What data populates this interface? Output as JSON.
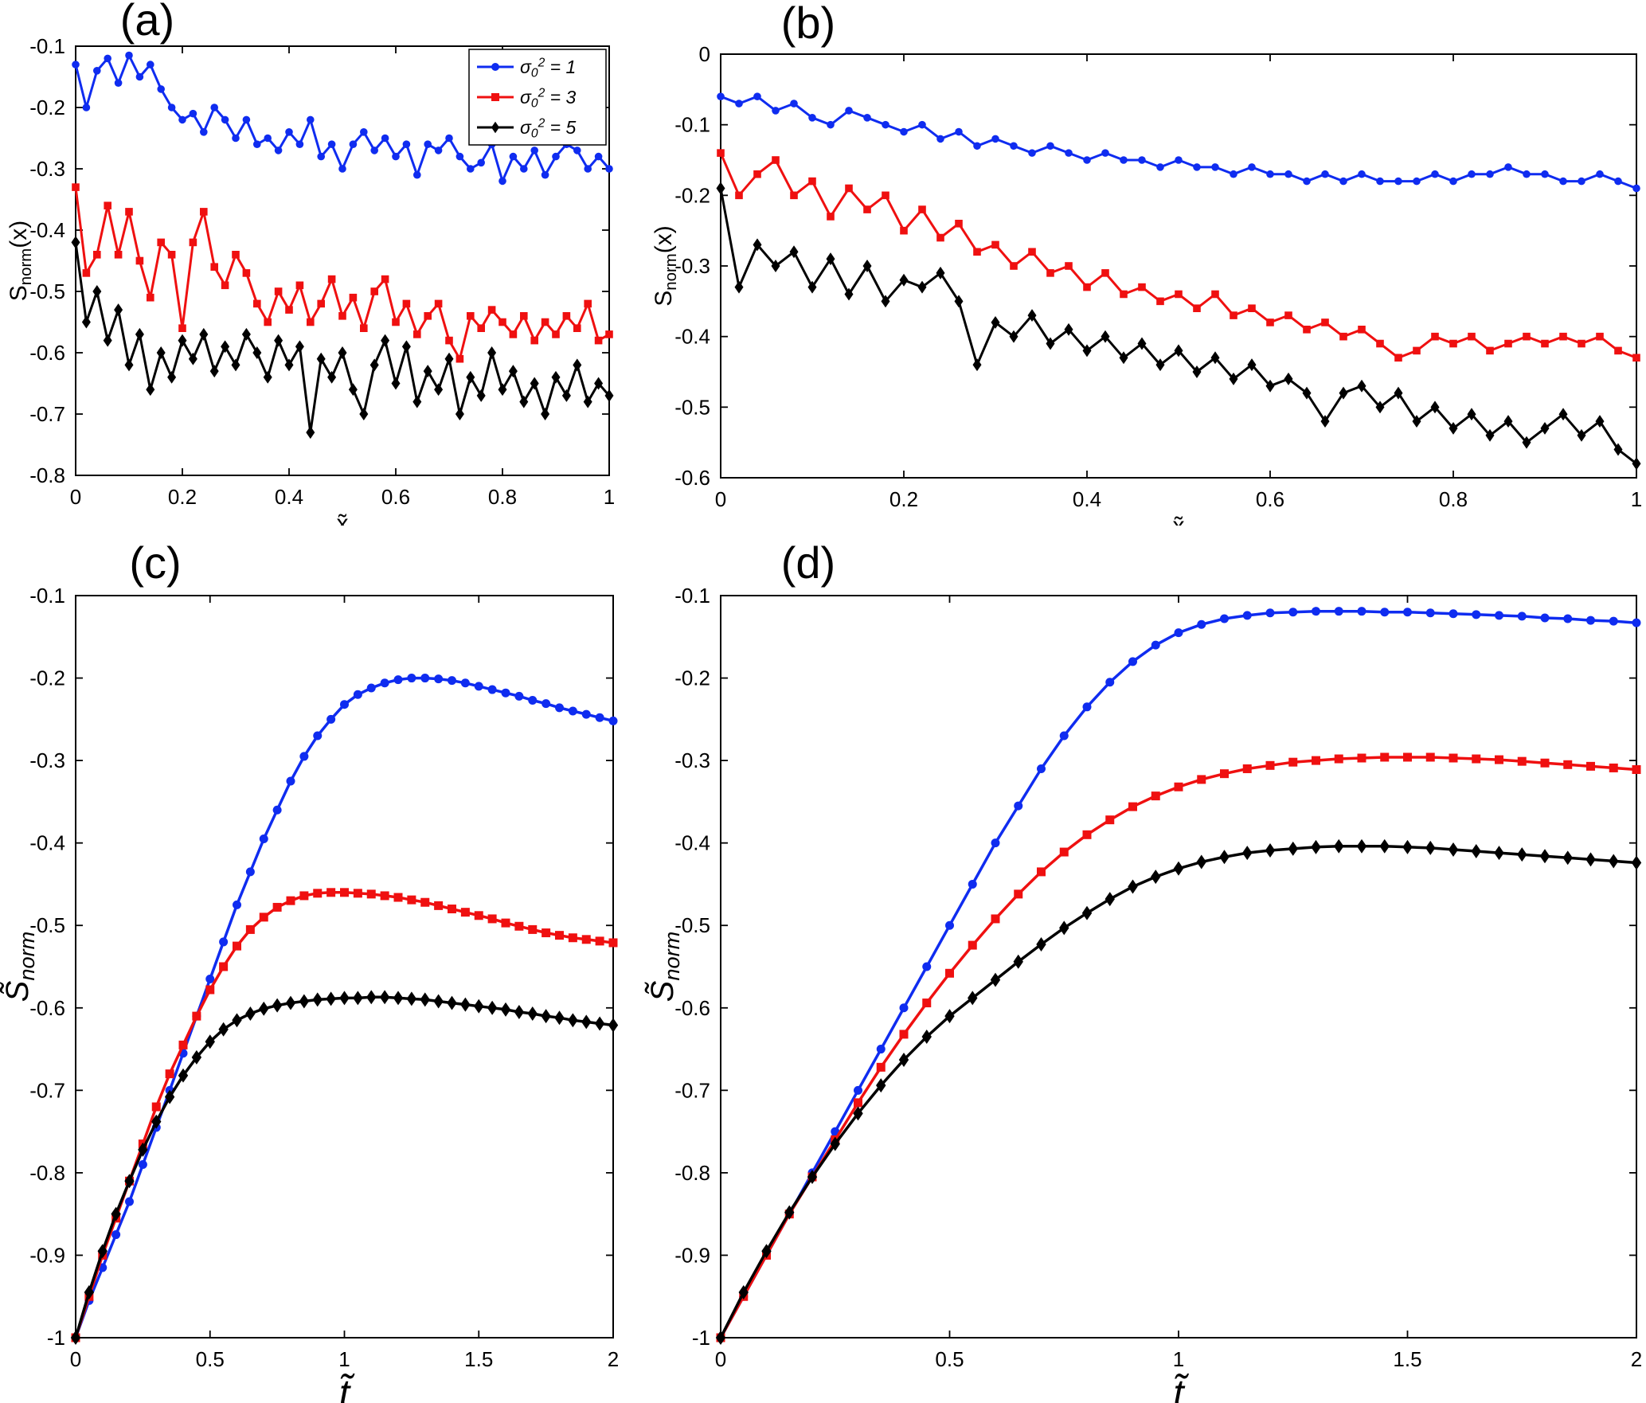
{
  "figure": {
    "background": "#ffffff",
    "panel_labels": [
      "(a)",
      "(b)",
      "(c)",
      "(d)"
    ]
  },
  "colors": {
    "series_blue": "#0f2cf0",
    "series_red": "#ef1010",
    "series_black": "#000000",
    "axis": "#000000"
  },
  "chart_data": [
    {
      "id": "a",
      "type": "line",
      "title": "(a)",
      "xlabel": "x̃",
      "ylabel": "S_{norm}(x)",
      "xlim": [
        0,
        1
      ],
      "ylim": [
        -0.8,
        -0.1
      ],
      "xticks": [
        0,
        0.2,
        0.4,
        0.6,
        0.8,
        1
      ],
      "yticks": [
        -0.8,
        -0.7,
        -0.6,
        -0.5,
        -0.4,
        -0.3,
        -0.2,
        -0.1
      ],
      "grid": false,
      "legend": {
        "show": true,
        "position": "top-right"
      },
      "x": [
        0,
        0.02,
        0.04,
        0.06,
        0.08,
        0.1,
        0.12,
        0.14,
        0.16,
        0.18,
        0.2,
        0.22,
        0.24,
        0.26,
        0.28,
        0.3,
        0.32,
        0.34,
        0.36,
        0.38,
        0.4,
        0.42,
        0.44,
        0.46,
        0.48,
        0.5,
        0.52,
        0.54,
        0.56,
        0.58,
        0.6,
        0.62,
        0.64,
        0.66,
        0.68,
        0.7,
        0.72,
        0.74,
        0.76,
        0.78,
        0.8,
        0.82,
        0.84,
        0.86,
        0.88,
        0.9,
        0.92,
        0.94,
        0.96,
        0.98,
        1
      ],
      "series": [
        {
          "name": "σ_{0}^{2} = 1",
          "color": "#0f2cf0",
          "marker": "circle",
          "y": [
            -0.13,
            -0.2,
            -0.14,
            -0.12,
            -0.16,
            -0.115,
            -0.15,
            -0.13,
            -0.17,
            -0.2,
            -0.22,
            -0.21,
            -0.24,
            -0.2,
            -0.22,
            -0.25,
            -0.22,
            -0.26,
            -0.25,
            -0.27,
            -0.24,
            -0.26,
            -0.22,
            -0.28,
            -0.26,
            -0.3,
            -0.26,
            -0.24,
            -0.27,
            -0.25,
            -0.28,
            -0.26,
            -0.31,
            -0.26,
            -0.27,
            -0.25,
            -0.28,
            -0.3,
            -0.29,
            -0.26,
            -0.32,
            -0.28,
            -0.3,
            -0.27,
            -0.31,
            -0.28,
            -0.26,
            -0.27,
            -0.3,
            -0.28,
            -0.3
          ]
        },
        {
          "name": "σ_{0}^{2} = 3",
          "color": "#ef1010",
          "marker": "square",
          "y": [
            -0.33,
            -0.47,
            -0.44,
            -0.36,
            -0.44,
            -0.37,
            -0.45,
            -0.51,
            -0.42,
            -0.44,
            -0.56,
            -0.42,
            -0.37,
            -0.46,
            -0.49,
            -0.44,
            -0.47,
            -0.52,
            -0.55,
            -0.5,
            -0.53,
            -0.49,
            -0.55,
            -0.52,
            -0.48,
            -0.54,
            -0.51,
            -0.56,
            -0.5,
            -0.48,
            -0.55,
            -0.52,
            -0.57,
            -0.54,
            -0.52,
            -0.58,
            -0.61,
            -0.54,
            -0.56,
            -0.53,
            -0.55,
            -0.57,
            -0.54,
            -0.58,
            -0.55,
            -0.57,
            -0.54,
            -0.56,
            -0.52,
            -0.58,
            -0.57
          ]
        },
        {
          "name": "σ_{0}^{2} = 5",
          "color": "#000000",
          "marker": "diamond",
          "y": [
            -0.42,
            -0.55,
            -0.5,
            -0.58,
            -0.53,
            -0.62,
            -0.57,
            -0.66,
            -0.6,
            -0.64,
            -0.58,
            -0.61,
            -0.57,
            -0.63,
            -0.59,
            -0.62,
            -0.57,
            -0.6,
            -0.64,
            -0.58,
            -0.62,
            -0.59,
            -0.73,
            -0.61,
            -0.64,
            -0.6,
            -0.66,
            -0.7,
            -0.62,
            -0.58,
            -0.65,
            -0.59,
            -0.68,
            -0.63,
            -0.66,
            -0.61,
            -0.7,
            -0.64,
            -0.67,
            -0.6,
            -0.66,
            -0.63,
            -0.68,
            -0.65,
            -0.7,
            -0.64,
            -0.67,
            -0.62,
            -0.68,
            -0.65,
            -0.67
          ]
        }
      ]
    },
    {
      "id": "b",
      "type": "line",
      "title": "(b)",
      "xlabel": "x̃",
      "ylabel": "S_{norm}(x)",
      "xlim": [
        0,
        1
      ],
      "ylim": [
        -0.6,
        0
      ],
      "xticks": [
        0,
        0.2,
        0.4,
        0.6,
        0.8,
        1
      ],
      "yticks": [
        -0.6,
        -0.5,
        -0.4,
        -0.3,
        -0.2,
        -0.1,
        0
      ],
      "grid": false,
      "legend": {
        "show": false
      },
      "x": [
        0,
        0.02,
        0.04,
        0.06,
        0.08,
        0.1,
        0.12,
        0.14,
        0.16,
        0.18,
        0.2,
        0.22,
        0.24,
        0.26,
        0.28,
        0.3,
        0.32,
        0.34,
        0.36,
        0.38,
        0.4,
        0.42,
        0.44,
        0.46,
        0.48,
        0.5,
        0.52,
        0.54,
        0.56,
        0.58,
        0.6,
        0.62,
        0.64,
        0.66,
        0.68,
        0.7,
        0.72,
        0.74,
        0.76,
        0.78,
        0.8,
        0.82,
        0.84,
        0.86,
        0.88,
        0.9,
        0.92,
        0.94,
        0.96,
        0.98,
        1
      ],
      "series": [
        {
          "name": "σ_{0}^{2} = 1",
          "color": "#0f2cf0",
          "marker": "circle",
          "y": [
            -0.06,
            -0.07,
            -0.06,
            -0.08,
            -0.07,
            -0.09,
            -0.1,
            -0.08,
            -0.09,
            -0.1,
            -0.11,
            -0.1,
            -0.12,
            -0.11,
            -0.13,
            -0.12,
            -0.13,
            -0.14,
            -0.13,
            -0.14,
            -0.15,
            -0.14,
            -0.15,
            -0.15,
            -0.16,
            -0.15,
            -0.16,
            -0.16,
            -0.17,
            -0.16,
            -0.17,
            -0.17,
            -0.18,
            -0.17,
            -0.18,
            -0.17,
            -0.18,
            -0.18,
            -0.18,
            -0.17,
            -0.18,
            -0.17,
            -0.17,
            -0.16,
            -0.17,
            -0.17,
            -0.18,
            -0.18,
            -0.17,
            -0.18,
            -0.19
          ]
        },
        {
          "name": "σ_{0}^{2} = 3",
          "color": "#ef1010",
          "marker": "square",
          "y": [
            -0.14,
            -0.2,
            -0.17,
            -0.15,
            -0.2,
            -0.18,
            -0.23,
            -0.19,
            -0.22,
            -0.2,
            -0.25,
            -0.22,
            -0.26,
            -0.24,
            -0.28,
            -0.27,
            -0.3,
            -0.28,
            -0.31,
            -0.3,
            -0.33,
            -0.31,
            -0.34,
            -0.33,
            -0.35,
            -0.34,
            -0.36,
            -0.34,
            -0.37,
            -0.36,
            -0.38,
            -0.37,
            -0.39,
            -0.38,
            -0.4,
            -0.39,
            -0.41,
            -0.43,
            -0.42,
            -0.4,
            -0.41,
            -0.4,
            -0.42,
            -0.41,
            -0.4,
            -0.41,
            -0.4,
            -0.41,
            -0.4,
            -0.42,
            -0.43
          ]
        },
        {
          "name": "σ_{0}^{2} = 5",
          "color": "#000000",
          "marker": "diamond",
          "y": [
            -0.19,
            -0.33,
            -0.27,
            -0.3,
            -0.28,
            -0.33,
            -0.29,
            -0.34,
            -0.3,
            -0.35,
            -0.32,
            -0.33,
            -0.31,
            -0.35,
            -0.44,
            -0.38,
            -0.4,
            -0.37,
            -0.41,
            -0.39,
            -0.42,
            -0.4,
            -0.43,
            -0.41,
            -0.44,
            -0.42,
            -0.45,
            -0.43,
            -0.46,
            -0.44,
            -0.47,
            -0.46,
            -0.48,
            -0.52,
            -0.48,
            -0.47,
            -0.5,
            -0.48,
            -0.52,
            -0.5,
            -0.53,
            -0.51,
            -0.54,
            -0.52,
            -0.55,
            -0.53,
            -0.51,
            -0.54,
            -0.52,
            -0.56,
            -0.58
          ]
        }
      ]
    },
    {
      "id": "c",
      "type": "line",
      "title": "(c)",
      "xlabel": "t̃",
      "ylabel": "S̃_{norm}",
      "xlim": [
        0,
        2
      ],
      "ylim": [
        -1,
        -0.1
      ],
      "xticks": [
        0,
        0.5,
        1,
        1.5,
        2
      ],
      "yticks": [
        -1,
        -0.9,
        -0.8,
        -0.7,
        -0.6,
        -0.5,
        -0.4,
        -0.3,
        -0.2,
        -0.1
      ],
      "grid": false,
      "legend": {
        "show": false
      },
      "x": [
        0,
        0.05,
        0.1,
        0.15,
        0.2,
        0.25,
        0.3,
        0.35,
        0.4,
        0.45,
        0.5,
        0.55,
        0.6,
        0.65,
        0.7,
        0.75,
        0.8,
        0.85,
        0.9,
        0.95,
        1,
        1.05,
        1.1,
        1.15,
        1.2,
        1.25,
        1.3,
        1.35,
        1.4,
        1.45,
        1.5,
        1.55,
        1.6,
        1.65,
        1.7,
        1.75,
        1.8,
        1.85,
        1.9,
        1.95,
        2
      ],
      "series": [
        {
          "name": "σ_{0}^{2} = 1",
          "color": "#0f2cf0",
          "marker": "circle",
          "y": [
            -1,
            -0.955,
            -0.915,
            -0.875,
            -0.835,
            -0.79,
            -0.745,
            -0.7,
            -0.655,
            -0.61,
            -0.565,
            -0.52,
            -0.475,
            -0.435,
            -0.395,
            -0.36,
            -0.325,
            -0.295,
            -0.27,
            -0.25,
            -0.232,
            -0.22,
            -0.212,
            -0.206,
            -0.202,
            -0.2,
            -0.2,
            -0.201,
            -0.203,
            -0.206,
            -0.21,
            -0.214,
            -0.218,
            -0.222,
            -0.227,
            -0.231,
            -0.236,
            -0.24,
            -0.244,
            -0.248,
            -0.252
          ]
        },
        {
          "name": "σ_{0}^{2} = 3",
          "color": "#ef1010",
          "marker": "square",
          "y": [
            -1,
            -0.95,
            -0.9,
            -0.855,
            -0.81,
            -0.765,
            -0.72,
            -0.68,
            -0.645,
            -0.61,
            -0.578,
            -0.55,
            -0.525,
            -0.505,
            -0.49,
            -0.478,
            -0.47,
            -0.464,
            -0.461,
            -0.46,
            -0.46,
            -0.461,
            -0.462,
            -0.464,
            -0.466,
            -0.469,
            -0.472,
            -0.476,
            -0.48,
            -0.484,
            -0.488,
            -0.492,
            -0.497,
            -0.501,
            -0.505,
            -0.509,
            -0.512,
            -0.515,
            -0.517,
            -0.519,
            -0.521
          ]
        },
        {
          "name": "σ_{0}^{2} = 5",
          "color": "#000000",
          "marker": "diamond",
          "y": [
            -1,
            -0.945,
            -0.895,
            -0.85,
            -0.81,
            -0.772,
            -0.738,
            -0.708,
            -0.682,
            -0.66,
            -0.641,
            -0.626,
            -0.615,
            -0.607,
            -0.601,
            -0.597,
            -0.594,
            -0.592,
            -0.59,
            -0.589,
            -0.588,
            -0.588,
            -0.587,
            -0.587,
            -0.588,
            -0.589,
            -0.59,
            -0.592,
            -0.594,
            -0.596,
            -0.598,
            -0.6,
            -0.602,
            -0.605,
            -0.607,
            -0.61,
            -0.612,
            -0.615,
            -0.617,
            -0.619,
            -0.621
          ]
        }
      ]
    },
    {
      "id": "d",
      "type": "line",
      "title": "(d)",
      "xlabel": "t̃",
      "ylabel": "S̃_{norm}",
      "xlim": [
        0,
        2
      ],
      "ylim": [
        -1,
        -0.1
      ],
      "xticks": [
        0,
        0.5,
        1,
        1.5,
        2
      ],
      "yticks": [
        -1,
        -0.9,
        -0.8,
        -0.7,
        -0.6,
        -0.5,
        -0.4,
        -0.3,
        -0.2,
        -0.1
      ],
      "grid": false,
      "legend": {
        "show": false
      },
      "x": [
        0,
        0.05,
        0.1,
        0.15,
        0.2,
        0.25,
        0.3,
        0.35,
        0.4,
        0.45,
        0.5,
        0.55,
        0.6,
        0.65,
        0.7,
        0.75,
        0.8,
        0.85,
        0.9,
        0.95,
        1,
        1.05,
        1.1,
        1.15,
        1.2,
        1.25,
        1.3,
        1.35,
        1.4,
        1.45,
        1.5,
        1.55,
        1.6,
        1.65,
        1.7,
        1.75,
        1.8,
        1.85,
        1.9,
        1.95,
        2
      ],
      "series": [
        {
          "name": "σ_{0}^{2} = 1",
          "color": "#0f2cf0",
          "marker": "circle",
          "y": [
            -1,
            -0.95,
            -0.9,
            -0.85,
            -0.8,
            -0.75,
            -0.7,
            -0.65,
            -0.6,
            -0.55,
            -0.5,
            -0.45,
            -0.4,
            -0.355,
            -0.31,
            -0.27,
            -0.235,
            -0.205,
            -0.18,
            -0.16,
            -0.145,
            -0.135,
            -0.128,
            -0.124,
            -0.121,
            -0.12,
            -0.119,
            -0.119,
            -0.119,
            -0.12,
            -0.12,
            -0.121,
            -0.122,
            -0.123,
            -0.124,
            -0.125,
            -0.127,
            -0.128,
            -0.13,
            -0.131,
            -0.133
          ]
        },
        {
          "name": "σ_{0}^{2} = 3",
          "color": "#ef1010",
          "marker": "square",
          "y": [
            -1,
            -0.95,
            -0.9,
            -0.85,
            -0.805,
            -0.76,
            -0.715,
            -0.672,
            -0.632,
            -0.594,
            -0.558,
            -0.524,
            -0.492,
            -0.462,
            -0.435,
            -0.411,
            -0.39,
            -0.372,
            -0.356,
            -0.343,
            -0.332,
            -0.323,
            -0.316,
            -0.31,
            -0.306,
            -0.302,
            -0.3,
            -0.298,
            -0.297,
            -0.296,
            -0.296,
            -0.296,
            -0.297,
            -0.298,
            -0.299,
            -0.301,
            -0.303,
            -0.305,
            -0.307,
            -0.309,
            -0.311
          ]
        },
        {
          "name": "σ_{0}^{2} = 5",
          "color": "#000000",
          "marker": "diamond",
          "y": [
            -1,
            -0.945,
            -0.895,
            -0.848,
            -0.805,
            -0.765,
            -0.728,
            -0.694,
            -0.663,
            -0.635,
            -0.61,
            -0.588,
            -0.566,
            -0.544,
            -0.523,
            -0.503,
            -0.485,
            -0.468,
            -0.453,
            -0.441,
            -0.431,
            -0.423,
            -0.417,
            -0.412,
            -0.409,
            -0.407,
            -0.405,
            -0.404,
            -0.404,
            -0.404,
            -0.405,
            -0.406,
            -0.408,
            -0.41,
            -0.412,
            -0.414,
            -0.416,
            -0.418,
            -0.42,
            -0.422,
            -0.424
          ]
        }
      ]
    }
  ]
}
